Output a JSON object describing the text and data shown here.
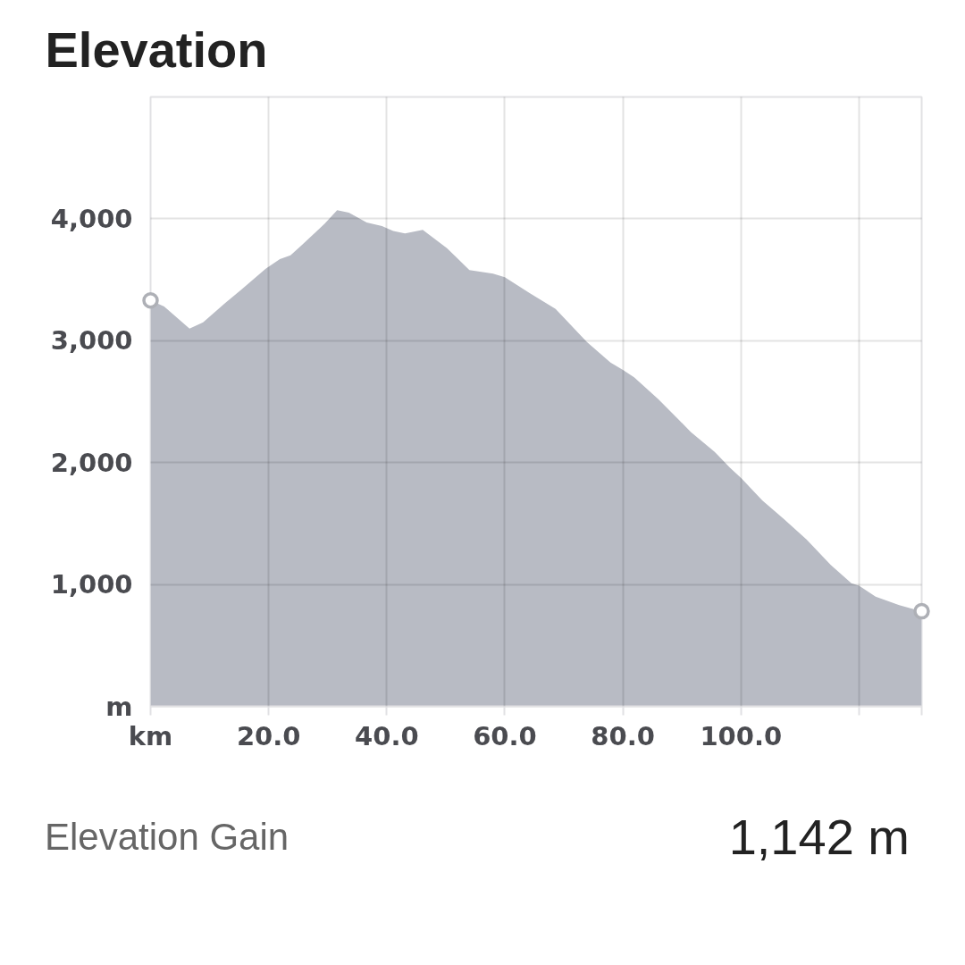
{
  "chart_data": {
    "type": "area",
    "title": "Elevation",
    "x": [
      0,
      2.3,
      6.6,
      8.9,
      12.4,
      15.4,
      19.5,
      21.9,
      23.7,
      25.5,
      29.5,
      31.6,
      33.6,
      36.6,
      39.2,
      41.1,
      43.1,
      46.1,
      50.2,
      54.0,
      58.0,
      60.0,
      64.2,
      68.6,
      73.9,
      77.9,
      80.0,
      81.9,
      86.0,
      89.5,
      91.5,
      95.5,
      98.1,
      100.1,
      103.6,
      107.2,
      111.1,
      115.2,
      118.7,
      120.0,
      122.8,
      126.8,
      130.6
    ],
    "series": [
      {
        "color": "#b8bbc4",
        "values": [
          3330,
          3280,
          3100,
          3150,
          3300,
          3420,
          3590,
          3670,
          3700,
          3780,
          3960,
          4070,
          4050,
          3970,
          3940,
          3900,
          3880,
          3910,
          3760,
          3580,
          3550,
          3520,
          3390,
          3260,
          2990,
          2820,
          2760,
          2700,
          2520,
          2350,
          2250,
          2090,
          1960,
          1870,
          1690,
          1540,
          1370,
          1160,
          1010,
          990,
          900,
          830,
          780
        ]
      },
      {
        "type": "scatter",
        "x": [
          0,
          130.6
        ],
        "values": [
          3330,
          780
        ],
        "color": "#aeb0b6",
        "marker": "circle"
      }
    ],
    "xlim": [
      0,
      130.6
    ],
    "ylim": [
      0,
      5000
    ],
    "xticks": [
      {
        "value": 0,
        "label": "km"
      },
      {
        "value": 20,
        "label": "20.0"
      },
      {
        "value": 40,
        "label": "40.0"
      },
      {
        "value": 60,
        "label": "60.0"
      },
      {
        "value": 80,
        "label": "80.0"
      },
      {
        "value": 100,
        "label": "100.0"
      },
      {
        "value": 120,
        "label": null
      },
      {
        "value": 130.6,
        "label": null
      }
    ],
    "yticks": [
      {
        "value": 0,
        "label": "m"
      },
      {
        "value": 1000,
        "label": "1,000"
      },
      {
        "value": 2000,
        "label": "2,000"
      },
      {
        "value": 3000,
        "label": "3,000"
      },
      {
        "value": 4000,
        "label": "4,000"
      },
      {
        "value": 5000,
        "label": null
      }
    ],
    "grid": true,
    "annotations": [
      "Elevation Gain",
      "1,142 m"
    ]
  }
}
